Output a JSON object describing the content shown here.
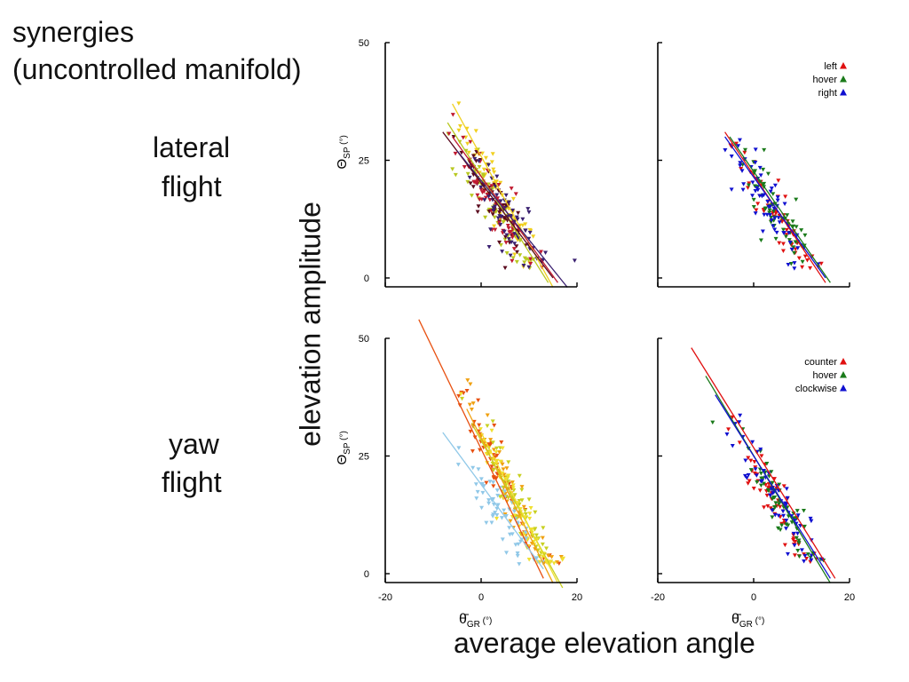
{
  "slide": {
    "title_line1": "synergies",
    "title_line2": "(uncontrolled manifold)",
    "row_label_lateral_1": "lateral",
    "row_label_lateral_2": "flight",
    "row_label_yaw_1": "yaw",
    "row_label_yaw_2": "flight",
    "shared_ylabel": "elevation amplitude",
    "shared_xlabel": "average elevation angle"
  },
  "axes_text": {
    "ylabel_main": "Θ",
    "ylabel_sub": "SP",
    "ylabel_unit": " (°)",
    "xlabel_main": "θ̄",
    "xlabel_sub": "GR",
    "xlabel_unit": " (°)"
  },
  "chart_data": [
    {
      "type": "scatter",
      "panel": "lateral-by-fly",
      "xlim": [
        -20,
        20
      ],
      "ylim": [
        0,
        50
      ],
      "yticks": [
        "0",
        "25",
        "50"
      ],
      "xticks": [],
      "legend": null,
      "series": [
        {
          "color": "#f0d020",
          "center": [
            4,
            17
          ],
          "fit": [
            [
              -6,
              37
            ],
            [
              15,
              -2
            ]
          ]
        },
        {
          "color": "#b8c820",
          "center": [
            2,
            15
          ],
          "fit": [
            [
              -7,
              33
            ],
            [
              14,
              -1
            ]
          ]
        },
        {
          "color": "#5a0a1e",
          "center": [
            3,
            16
          ],
          "fit": [
            [
              -8,
              31
            ],
            [
              15,
              0
            ]
          ]
        },
        {
          "color": "#c01a30",
          "center": [
            3,
            15
          ],
          "fit": [
            [
              -6,
              30
            ],
            [
              16,
              -1
            ]
          ]
        },
        {
          "color": "#3a2070",
          "center": [
            6,
            12
          ],
          "fit": [
            [
              -5,
              27
            ],
            [
              18,
              -2
            ]
          ]
        }
      ]
    },
    {
      "type": "scatter",
      "panel": "lateral-by-condition",
      "xlim": [
        -20,
        20
      ],
      "ylim": [
        0,
        50
      ],
      "yticks": [],
      "xticks": [],
      "legend": {
        "position": "top-right",
        "entries": [
          {
            "name": "left",
            "color": "#e01010"
          },
          {
            "name": "hover",
            "color": "#1a7a1a"
          },
          {
            "name": "right",
            "color": "#1010d0"
          }
        ]
      },
      "series": [
        {
          "name": "left",
          "color": "#e01010",
          "center": [
            4,
            15
          ],
          "fit": [
            [
              -6,
              31
            ],
            [
              15,
              -1
            ]
          ]
        },
        {
          "name": "hover",
          "color": "#1a7a1a",
          "center": [
            4,
            14
          ],
          "fit": [
            [
              -5,
              30
            ],
            [
              16,
              -1
            ]
          ]
        },
        {
          "name": "right",
          "color": "#1010d0",
          "center": [
            3,
            16
          ],
          "fit": [
            [
              -6,
              30
            ],
            [
              15,
              0
            ]
          ]
        }
      ]
    },
    {
      "type": "scatter",
      "panel": "yaw-by-fly",
      "xlim": [
        -20,
        20
      ],
      "ylim": [
        0,
        50
      ],
      "yticks": [
        "0",
        "25",
        "50"
      ],
      "xticks": [
        "-20",
        "0",
        "20"
      ],
      "legend": null,
      "series": [
        {
          "color": "#e85010",
          "center": [
            3,
            22
          ],
          "fit": [
            [
              -13,
              54
            ],
            [
              13,
              -1
            ]
          ]
        },
        {
          "color": "#f0a010",
          "center": [
            6,
            17
          ],
          "fit": [
            [
              -3,
              35
            ],
            [
              15,
              -2
            ]
          ]
        },
        {
          "color": "#c8d020",
          "center": [
            8,
            14
          ],
          "fit": [
            [
              -2,
              32
            ],
            [
              17,
              -3
            ]
          ]
        },
        {
          "color": "#f0e030",
          "center": [
            8,
            13
          ],
          "fit": [
            [
              0,
              30
            ],
            [
              16,
              -2
            ]
          ]
        },
        {
          "color": "#90c8e8",
          "center": [
            3,
            14
          ],
          "fit": [
            [
              -8,
              30
            ],
            [
              13,
              1
            ]
          ]
        }
      ]
    },
    {
      "type": "scatter",
      "panel": "yaw-by-condition",
      "xlim": [
        -20,
        20
      ],
      "ylim": [
        0,
        50
      ],
      "yticks": [],
      "xticks": [
        "-20",
        "0",
        "20"
      ],
      "legend": {
        "position": "top-right",
        "entries": [
          {
            "name": "counter",
            "color": "#e01010"
          },
          {
            "name": "hover",
            "color": "#1a7a1a"
          },
          {
            "name": "clockwise",
            "color": "#1010d0"
          }
        ]
      },
      "series": [
        {
          "name": "counter",
          "color": "#e01010",
          "center": [
            5,
            14
          ],
          "fit": [
            [
              -13,
              48
            ],
            [
              17,
              -1
            ]
          ]
        },
        {
          "name": "hover",
          "color": "#1a7a1a",
          "center": [
            5,
            15
          ],
          "fit": [
            [
              -10,
              42
            ],
            [
              16,
              -2
            ]
          ]
        },
        {
          "name": "clockwise",
          "color": "#1010d0",
          "center": [
            5,
            16
          ],
          "fit": [
            [
              -8,
              38
            ],
            [
              16,
              -1
            ]
          ]
        }
      ]
    }
  ]
}
